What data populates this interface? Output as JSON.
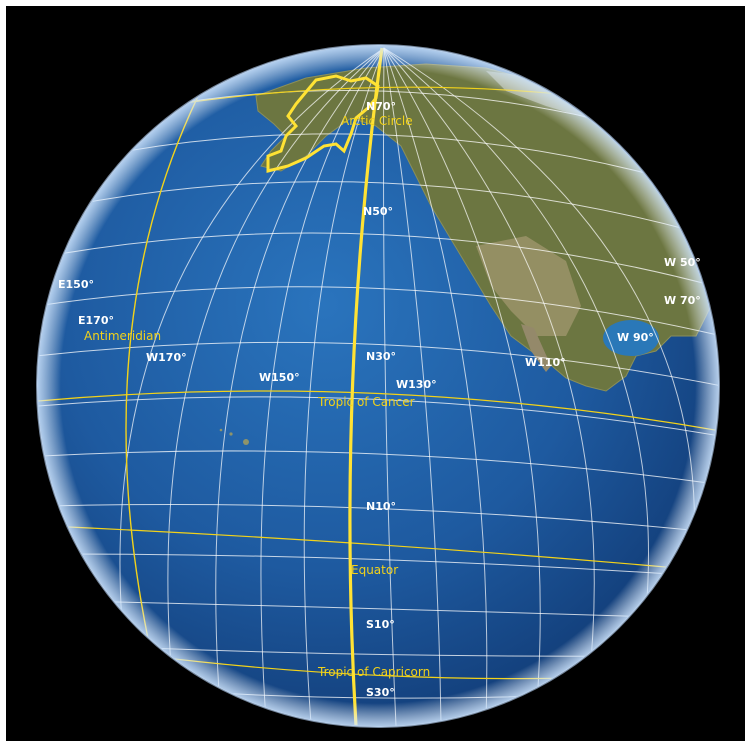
{
  "map": {
    "view": "globe",
    "colors": {
      "space": "#000000",
      "ocean": "#1f5fa8",
      "land": "#6f7a3e",
      "graticule": "#ffffff",
      "highlight": "#f2d21a"
    },
    "latitude_labels": [
      "N70°",
      "N50°",
      "N30°",
      "N10°",
      "S10°",
      "S30°"
    ],
    "longitude_labels": [
      "E150°",
      "E170°",
      "W170°",
      "W150°",
      "W130°",
      "W110°",
      "W 90°",
      "W 70°",
      "W 50°"
    ],
    "special_lines": {
      "arctic_circle": "Arctic Circle",
      "antimeridian": "Antimeridian",
      "tropic_of_cancer": "Tropic of Cancer",
      "equator": "Equator",
      "tropic_of_capricorn": "Tropic of Capricorn"
    }
  }
}
